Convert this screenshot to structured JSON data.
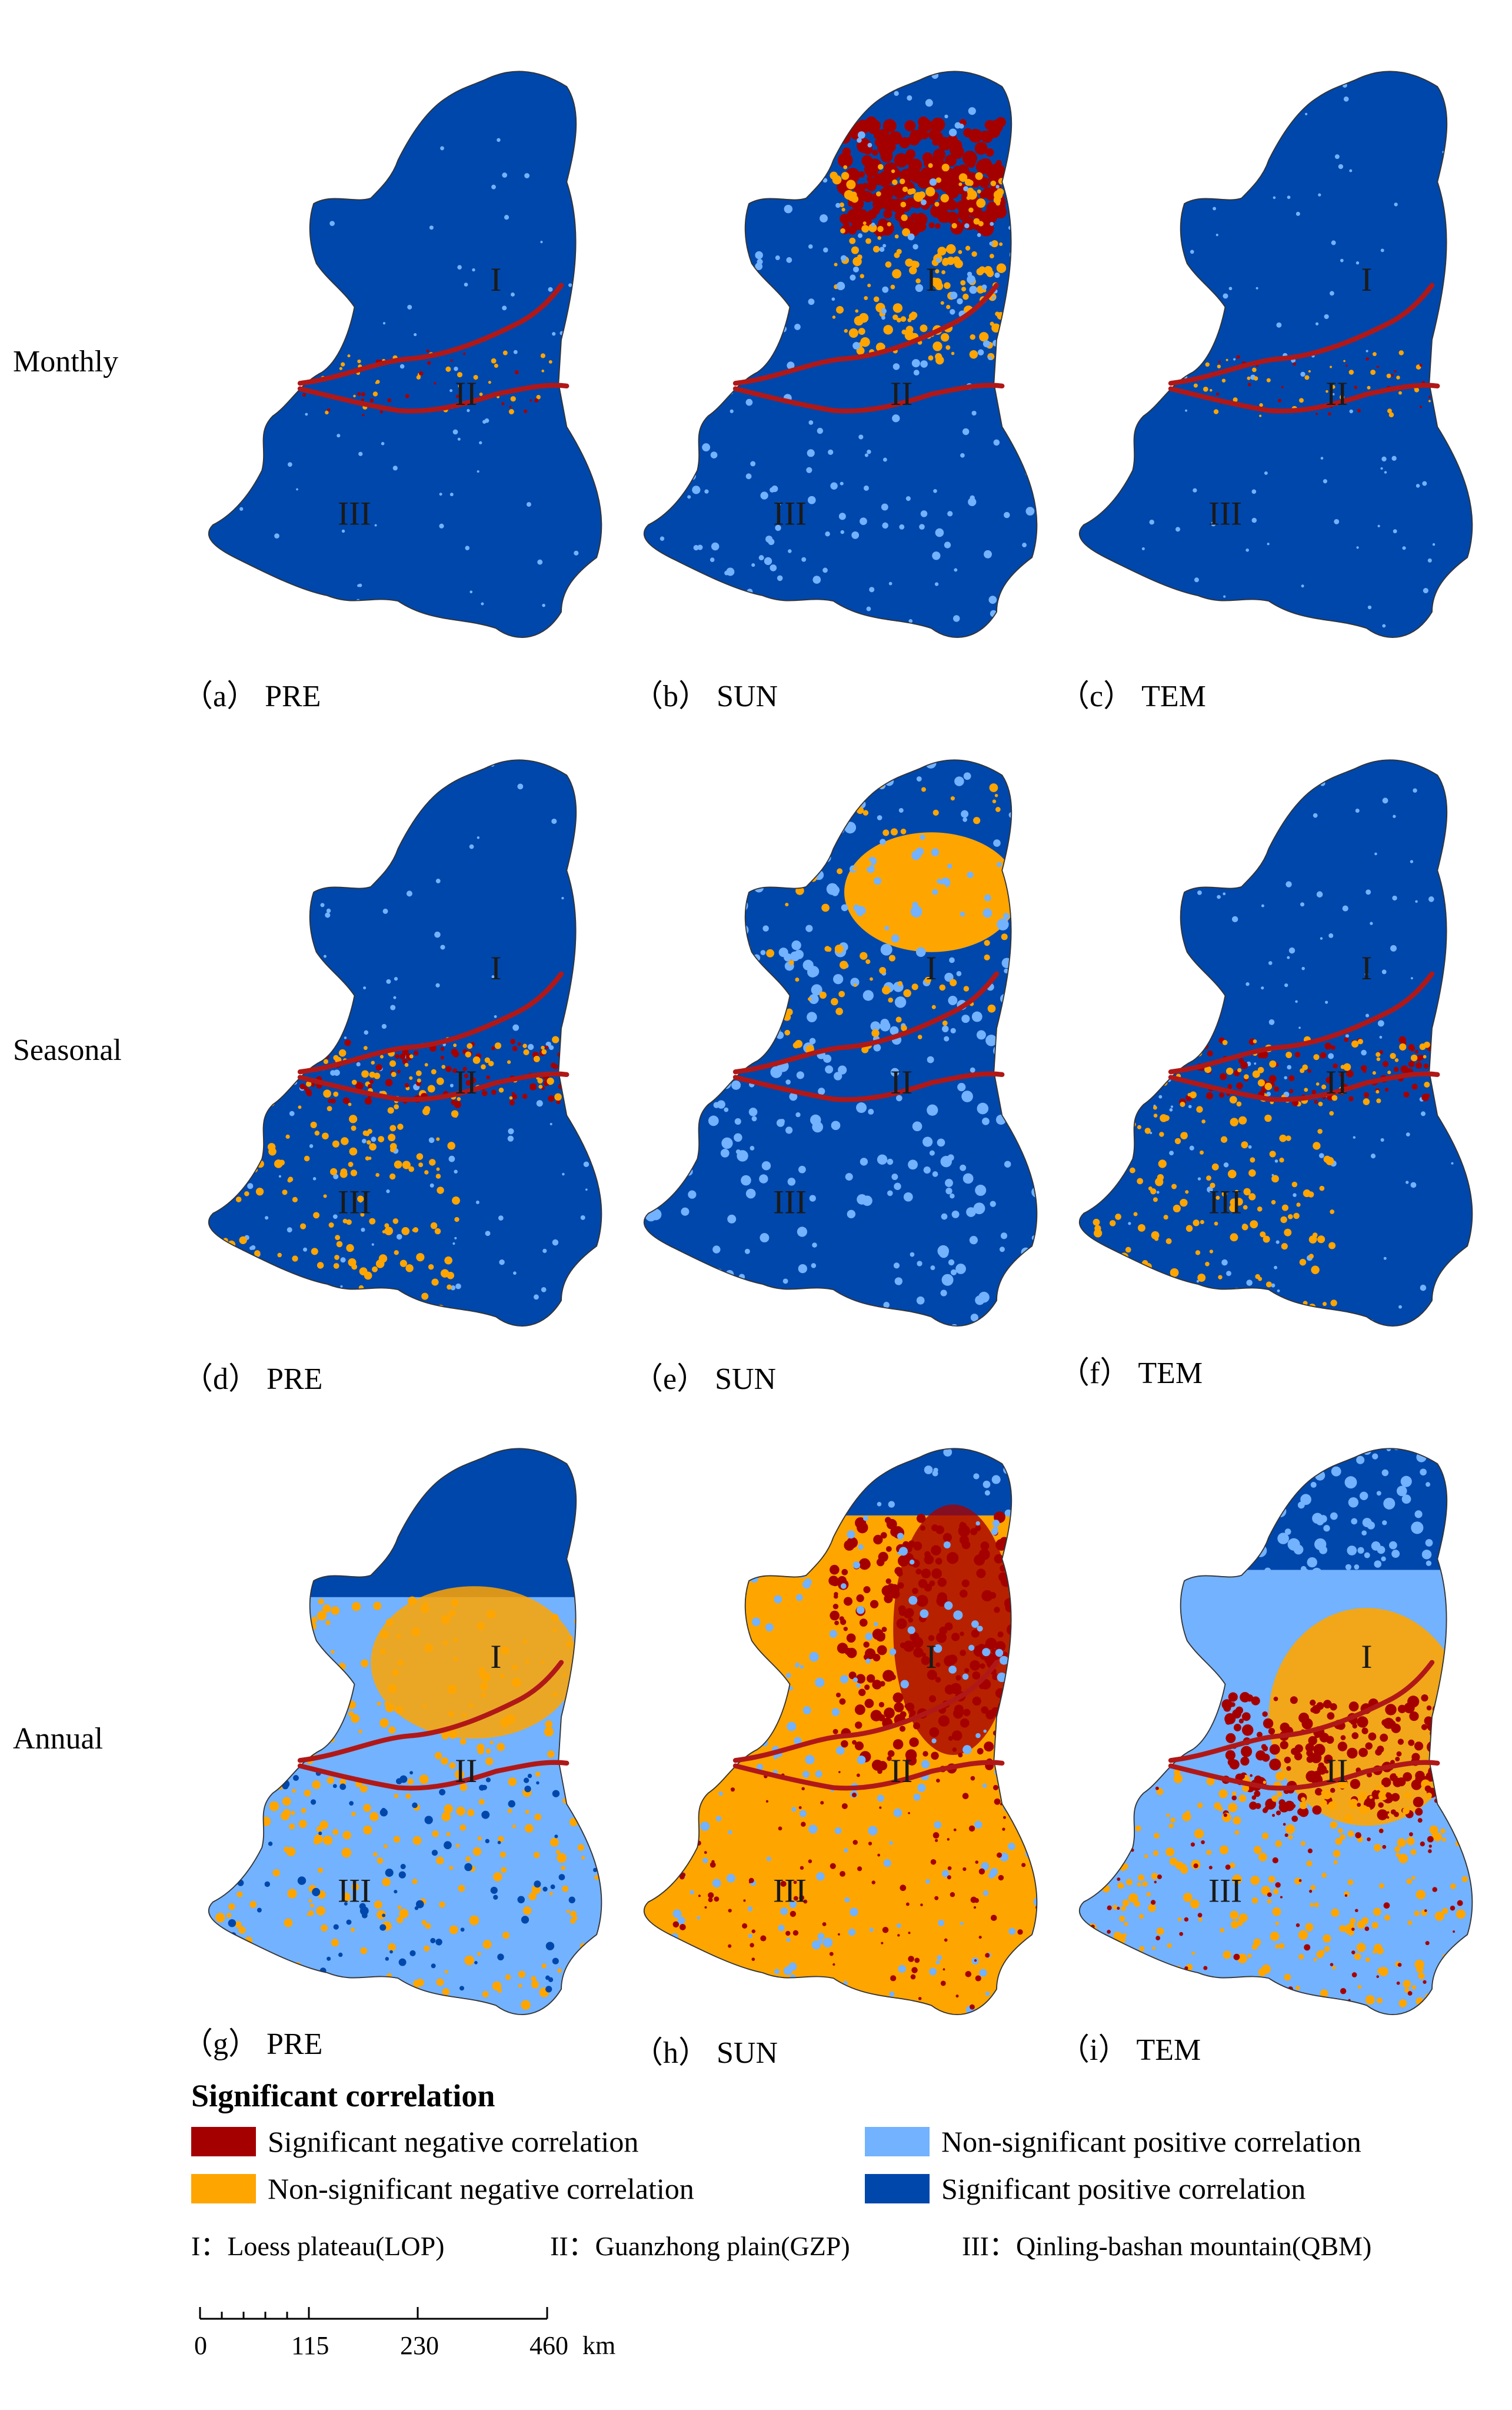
{
  "rows": [
    "Monthly",
    "Seasonal",
    "Annual"
  ],
  "panels": [
    {
      "caption": "（a） PRE",
      "mode": "blue"
    },
    {
      "caption": "（b） SUN",
      "mode": "blue_red"
    },
    {
      "caption": "（c） TEM",
      "mode": "blue"
    },
    {
      "caption": "（d） PRE",
      "mode": "blue_speckle"
    },
    {
      "caption": "（e） SUN",
      "mode": "mixed"
    },
    {
      "caption": "（f） TEM",
      "mode": "blue_speckle"
    },
    {
      "caption": "（g） PRE",
      "mode": "light"
    },
    {
      "caption": "（h） SUN",
      "mode": "orange_red"
    },
    {
      "caption": "（i） TEM",
      "mode": "light_red"
    }
  ],
  "region_labels": [
    "I",
    "II",
    "III"
  ],
  "legend": {
    "title": "Significant correlation",
    "items": [
      {
        "label": "Significant negative correlation",
        "color": "#a50000"
      },
      {
        "label": "Non-significant negative correlation",
        "color": "#ffa500"
      },
      {
        "label": "Non-significant positive correlation",
        "color": "#73b2ff"
      },
      {
        "label": "Significant positive correlation",
        "color": "#0047ab"
      }
    ]
  },
  "region_key": [
    "I：Loess plateau(LOP)",
    "II：Guanzhong plain(GZP)",
    "III：Qinling-bashan mountain(QBM)"
  ],
  "scalebar": {
    "ticks": [
      "0",
      "115",
      "230",
      "460"
    ],
    "unit": "km"
  },
  "colors": {
    "sig_negative": "#a50000",
    "nonsig_negative": "#ffa500",
    "nonsig_positive": "#73b2ff",
    "sig_positive": "#0047ab",
    "boundary": "#b01818"
  }
}
